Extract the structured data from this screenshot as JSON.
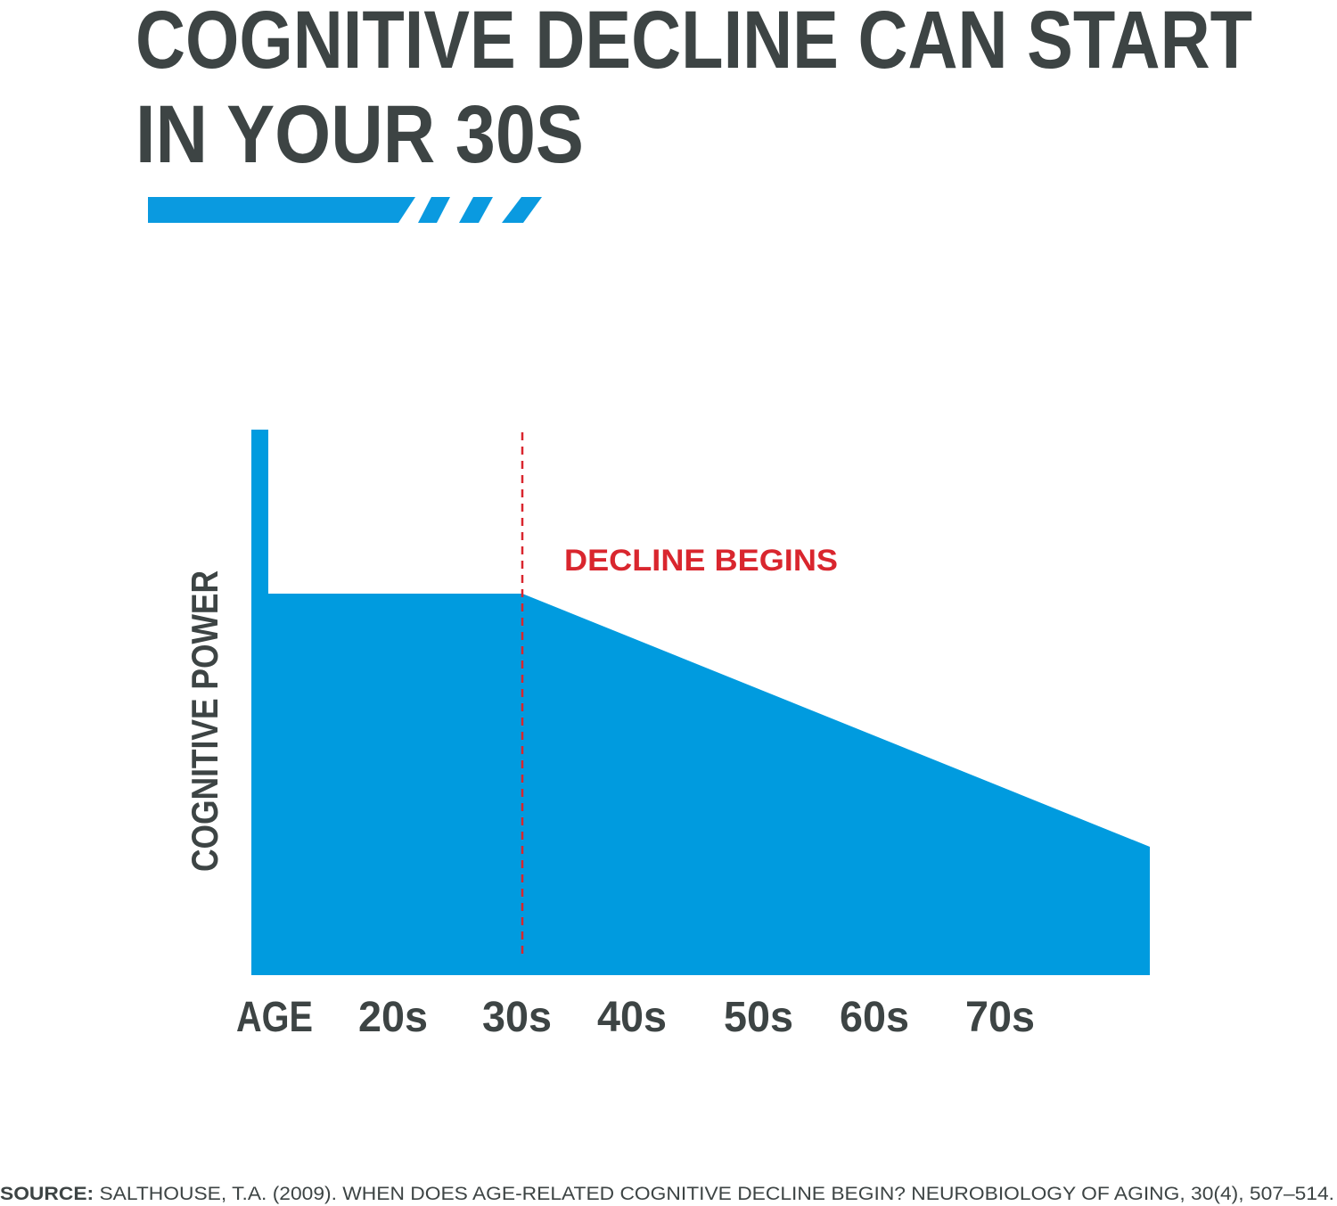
{
  "header": {
    "title_lines": [
      "COGNITIVE DECLINE CAN START",
      "IN YOUR 30S"
    ]
  },
  "graphic": {
    "y_axis_label": "COGNITIVE POWER",
    "annotation": "DECLINE BEGINS",
    "x_axis_label": "AGE",
    "x_labels": [
      "20s",
      "30s",
      "40s",
      "50s",
      "60s",
      "70s"
    ]
  },
  "footer": {
    "source_label": "SOURCE:",
    "source_text": "SALTHOUSE, T.A. (2009). WHEN DOES AGE-RELATED COGNITIVE DECLINE BEGIN? NEUROBIOLOGY OF AGING, 30(4), 507–514."
  }
}
